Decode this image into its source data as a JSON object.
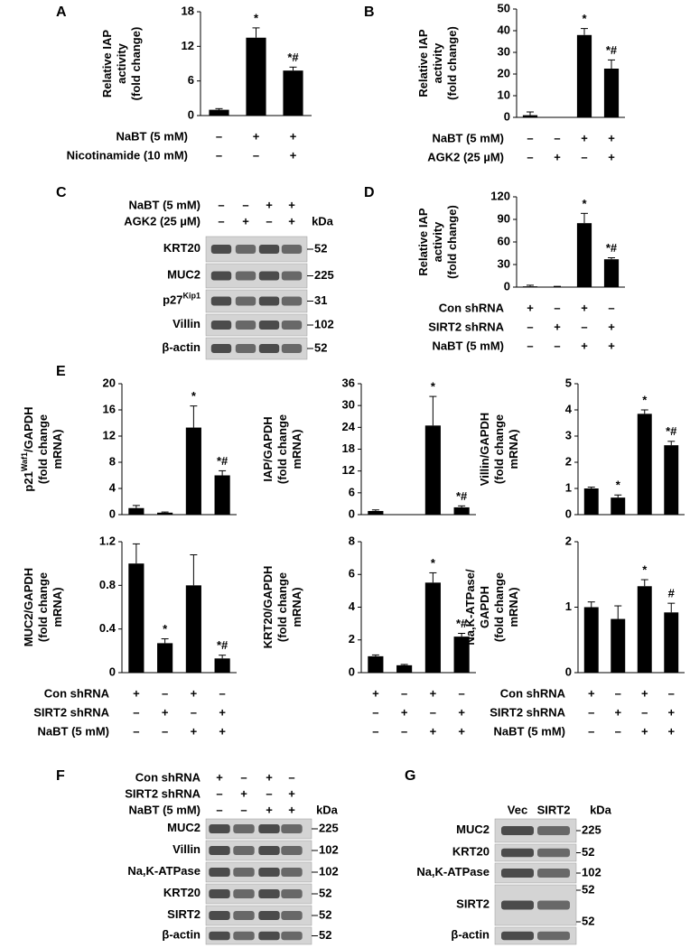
{
  "chart_data": [
    {
      "type": "bar",
      "panel": "A",
      "ylabel": [
        [
          "Relative IAP"
        ],
        [
          "activity"
        ],
        [
          "(fold change)"
        ]
      ],
      "color": "#000000",
      "values": [
        1,
        13.5,
        7.8
      ],
      "errors": [
        0.2,
        1.7,
        0.6
      ],
      "value_annotations": [
        null,
        "*",
        "*#"
      ],
      "ylim": [
        0,
        18
      ],
      "yticks": [
        0,
        6,
        12,
        18
      ],
      "conditions": [
        {
          "label": "NaBT (5 mM)",
          "signs": [
            "–",
            "+",
            "+"
          ]
        },
        {
          "label": "Nicotinamide (10 mM)",
          "signs": [
            "–",
            "–",
            "+"
          ]
        }
      ]
    },
    {
      "type": "bar",
      "panel": "B",
      "ylabel": [
        [
          "Relative IAP"
        ],
        [
          "activity"
        ],
        [
          "(fold change)"
        ]
      ],
      "color": "#000000",
      "values": [
        1,
        0,
        38,
        22.5
      ],
      "errors": [
        1.5,
        0,
        3,
        4
      ],
      "value_annotations": [
        null,
        null,
        "*",
        "*#"
      ],
      "ylim": [
        0,
        50
      ],
      "yticks": [
        0,
        10,
        20,
        30,
        40,
        50
      ],
      "conditions": [
        {
          "label": "NaBT (5 mM)",
          "signs": [
            "–",
            "–",
            "+",
            "+"
          ]
        },
        {
          "label": "AGK2 (25 µM)",
          "signs": [
            "–",
            "+",
            "–",
            "+"
          ]
        }
      ]
    },
    {
      "type": "bar",
      "panel": "D",
      "ylabel": [
        [
          "Relative IAP"
        ],
        [
          "activity"
        ],
        [
          "(fold change)"
        ]
      ],
      "color": "#000000",
      "values": [
        1,
        0.5,
        85,
        37
      ],
      "errors": [
        1.5,
        0.5,
        13,
        2
      ],
      "value_annotations": [
        null,
        null,
        "*",
        "*#"
      ],
      "ylim": [
        0,
        120
      ],
      "yticks": [
        0,
        30,
        60,
        90,
        120
      ],
      "conditions": [
        {
          "label": "Con shRNA",
          "signs": [
            "+",
            "–",
            "+",
            "–"
          ]
        },
        {
          "label": "SIRT2 shRNA",
          "signs": [
            "–",
            "+",
            "–",
            "+"
          ]
        },
        {
          "label": "NaBT (5 mM)",
          "signs": [
            "–",
            "–",
            "+",
            "+"
          ]
        }
      ]
    },
    {
      "type": "bar",
      "panel": "E",
      "ylabel": [
        [
          "p21",
          {
            "sup": "Waf1"
          },
          "/GAPDH"
        ],
        [
          "(fold change"
        ],
        [
          "mRNA)"
        ]
      ],
      "color": "#000000",
      "values": [
        1,
        0.3,
        13.3,
        6
      ],
      "errors": [
        0.4,
        0.1,
        3.3,
        0.7
      ],
      "value_annotations": [
        null,
        null,
        "*",
        "*#"
      ],
      "ylim": [
        0,
        20
      ],
      "yticks": [
        0,
        4,
        8,
        12,
        16,
        20
      ]
    },
    {
      "type": "bar",
      "ylabel": [
        [
          "IAP/GAPDH"
        ],
        [
          "(fold change"
        ],
        [
          "mRNA)"
        ]
      ],
      "color": "#000000",
      "values": [
        1,
        0,
        24.5,
        2
      ],
      "errors": [
        0.3,
        0,
        8,
        0.4
      ],
      "value_annotations": [
        null,
        null,
        "*",
        "*#"
      ],
      "ylim": [
        0,
        36
      ],
      "yticks": [
        0,
        6,
        12,
        18,
        24,
        30,
        36
      ]
    },
    {
      "type": "bar",
      "ylabel": [
        [
          "Villin/GAPDH"
        ],
        [
          "(fold change"
        ],
        [
          "mRNA)"
        ]
      ],
      "color": "#000000",
      "values": [
        1,
        0.65,
        3.85,
        2.65
      ],
      "errors": [
        0.05,
        0.1,
        0.15,
        0.15
      ],
      "value_annotations": [
        null,
        "*",
        "*",
        "*#"
      ],
      "ylim": [
        0,
        5
      ],
      "yticks": [
        0,
        1,
        2,
        3,
        4,
        5
      ]
    },
    {
      "type": "bar",
      "ylabel": [
        [
          "MUC2/GAPDH"
        ],
        [
          "(fold change"
        ],
        [
          "mRNA)"
        ]
      ],
      "color": "#000000",
      "values": [
        1,
        0.27,
        0.8,
        0.13
      ],
      "errors": [
        0.18,
        0.04,
        0.28,
        0.03
      ],
      "value_annotations": [
        null,
        "*",
        null,
        "*#"
      ],
      "ylim": [
        0,
        1.2
      ],
      "yticks": [
        0,
        0.4,
        0.8,
        1.2
      ],
      "conditions": [
        {
          "label": "Con shRNA",
          "signs": [
            "+",
            "–",
            "+",
            "–"
          ]
        },
        {
          "label": "SIRT2 shRNA",
          "signs": [
            "–",
            "+",
            "–",
            "+"
          ]
        },
        {
          "label": "NaBT (5 mM)",
          "signs": [
            "–",
            "–",
            "+",
            "+"
          ]
        }
      ]
    },
    {
      "type": "bar",
      "ylabel": [
        [
          "KRT20/GAPDH"
        ],
        [
          "(fold change"
        ],
        [
          "mRNA)"
        ]
      ],
      "color": "#000000",
      "values": [
        1,
        0.45,
        5.5,
        2.2
      ],
      "errors": [
        0.08,
        0.05,
        0.6,
        0.2
      ],
      "value_annotations": [
        null,
        null,
        "*",
        "*#"
      ],
      "ylim": [
        0,
        8
      ],
      "yticks": [
        0,
        2,
        4,
        6,
        8
      ],
      "conditions": [
        {
          "signs": [
            "+",
            "–",
            "+",
            "–"
          ]
        },
        {
          "signs": [
            "–",
            "+",
            "–",
            "+"
          ]
        },
        {
          "signs": [
            "–",
            "–",
            "+",
            "+"
          ]
        }
      ]
    },
    {
      "type": "bar",
      "ylabel": [
        [
          "Na,K-ATPase/"
        ],
        [
          "GAPDH"
        ],
        [
          "(fold change"
        ],
        [
          "mRNA)"
        ]
      ],
      "color": "#000000",
      "values": [
        1,
        0.82,
        1.32,
        0.92
      ],
      "errors": [
        0.08,
        0.2,
        0.1,
        0.14
      ],
      "value_annotations": [
        null,
        null,
        "*",
        "#"
      ],
      "ylim": [
        0,
        2
      ],
      "yticks": [
        0,
        1,
        2
      ],
      "conditions": [
        {
          "label": "Con shRNA",
          "signs": [
            "+",
            "–",
            "+",
            "–"
          ]
        },
        {
          "label": "SIRT2 shRNA",
          "signs": [
            "–",
            "+",
            "–",
            "+"
          ]
        },
        {
          "label": "NaBT (5 mM)",
          "signs": [
            "–",
            "–",
            "+",
            "+"
          ]
        }
      ]
    }
  ],
  "blots": [
    {
      "panel": "C",
      "conditions": [
        {
          "label": "NaBT (5 mM)",
          "signs": [
            "–",
            "–",
            "+",
            "+"
          ]
        },
        {
          "label": "AGK2 (25 µM)",
          "signs": [
            "–",
            "+",
            "–",
            "+"
          ]
        }
      ],
      "unit": "kDa",
      "rows": [
        {
          "label": "KRT20",
          "markers": [
            "52"
          ]
        },
        {
          "label": "MUC2",
          "markers": [
            "225"
          ]
        },
        {
          "label": [
            "p27",
            {
              "sup": "Kip1"
            }
          ],
          "markers": [
            "31"
          ]
        },
        {
          "label": "Villin",
          "markers": [
            "102"
          ]
        },
        {
          "label": "β-actin",
          "markers": [
            "52"
          ]
        }
      ]
    },
    {
      "panel": "F",
      "conditions": [
        {
          "label": "Con shRNA",
          "signs": [
            "+",
            "–",
            "+",
            "–"
          ]
        },
        {
          "label": "SIRT2 shRNA",
          "signs": [
            "–",
            "+",
            "–",
            "+"
          ]
        },
        {
          "label": "NaBT (5 mM)",
          "signs": [
            "–",
            "–",
            "+",
            "+"
          ]
        }
      ],
      "unit": "kDa",
      "rows": [
        {
          "label": "MUC2",
          "markers": [
            "225"
          ]
        },
        {
          "label": "Villin",
          "markers": [
            "102"
          ]
        },
        {
          "label": "Na,K-ATPase",
          "markers": [
            "102"
          ]
        },
        {
          "label": "KRT20",
          "markers": [
            "52"
          ]
        },
        {
          "label": "SIRT2",
          "markers": [
            "52"
          ]
        },
        {
          "label": "β-actin",
          "markers": [
            "52"
          ]
        }
      ]
    },
    {
      "panel": "G",
      "lanes": [
        "Vec",
        "SIRT2"
      ],
      "unit": "kDa",
      "rows": [
        {
          "label": "MUC2",
          "markers": [
            "225"
          ]
        },
        {
          "label": "KRT20",
          "markers": [
            "52"
          ]
        },
        {
          "label": "Na,K-ATPase",
          "markers": [
            "102"
          ]
        },
        {
          "label": "SIRT2",
          "markers": [
            "52",
            "52"
          ]
        },
        {
          "label": "β-actin",
          "markers": []
        }
      ]
    }
  ]
}
